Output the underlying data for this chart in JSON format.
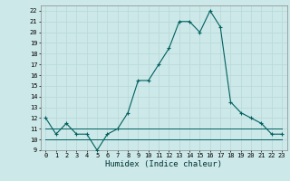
{
  "title": "",
  "xlabel": "Humidex (Indice chaleur)",
  "x": [
    0,
    1,
    2,
    3,
    4,
    5,
    6,
    7,
    8,
    9,
    10,
    11,
    12,
    13,
    14,
    15,
    16,
    17,
    18,
    19,
    20,
    21,
    22,
    23
  ],
  "y_main": [
    12,
    10.5,
    11.5,
    10.5,
    10.5,
    9,
    10.5,
    11,
    12.5,
    15.5,
    15.5,
    17,
    18.5,
    21,
    21,
    20,
    22,
    20.5,
    13.5,
    12.5,
    12,
    11.5,
    10.5,
    10.5
  ],
  "y_flat1": [
    11,
    11,
    11,
    11,
    11,
    11,
    11,
    11,
    11,
    11,
    11,
    11,
    11,
    11,
    11,
    11,
    11,
    11,
    11,
    11,
    11,
    11,
    11,
    11
  ],
  "y_flat2": [
    10,
    10,
    10,
    10,
    10,
    10,
    10,
    10,
    10,
    10,
    10,
    10,
    10,
    10,
    10,
    10,
    10,
    10,
    10,
    10,
    10,
    10,
    10,
    10
  ],
  "line_color": "#006060",
  "bg_color": "#cce8e8",
  "grid_color_minor": "#c0dede",
  "grid_color_major": "#a8cccc",
  "ylim": [
    9,
    22.5
  ],
  "xlim": [
    -0.5,
    23.5
  ],
  "yticks": [
    9,
    10,
    11,
    12,
    13,
    14,
    15,
    16,
    17,
    18,
    19,
    20,
    21,
    22
  ],
  "xticks": [
    0,
    1,
    2,
    3,
    4,
    5,
    6,
    7,
    8,
    9,
    10,
    11,
    12,
    13,
    14,
    15,
    16,
    17,
    18,
    19,
    20,
    21,
    22,
    23
  ],
  "tick_fontsize": 5,
  "xlabel_fontsize": 6.5,
  "title_fontsize": 7
}
